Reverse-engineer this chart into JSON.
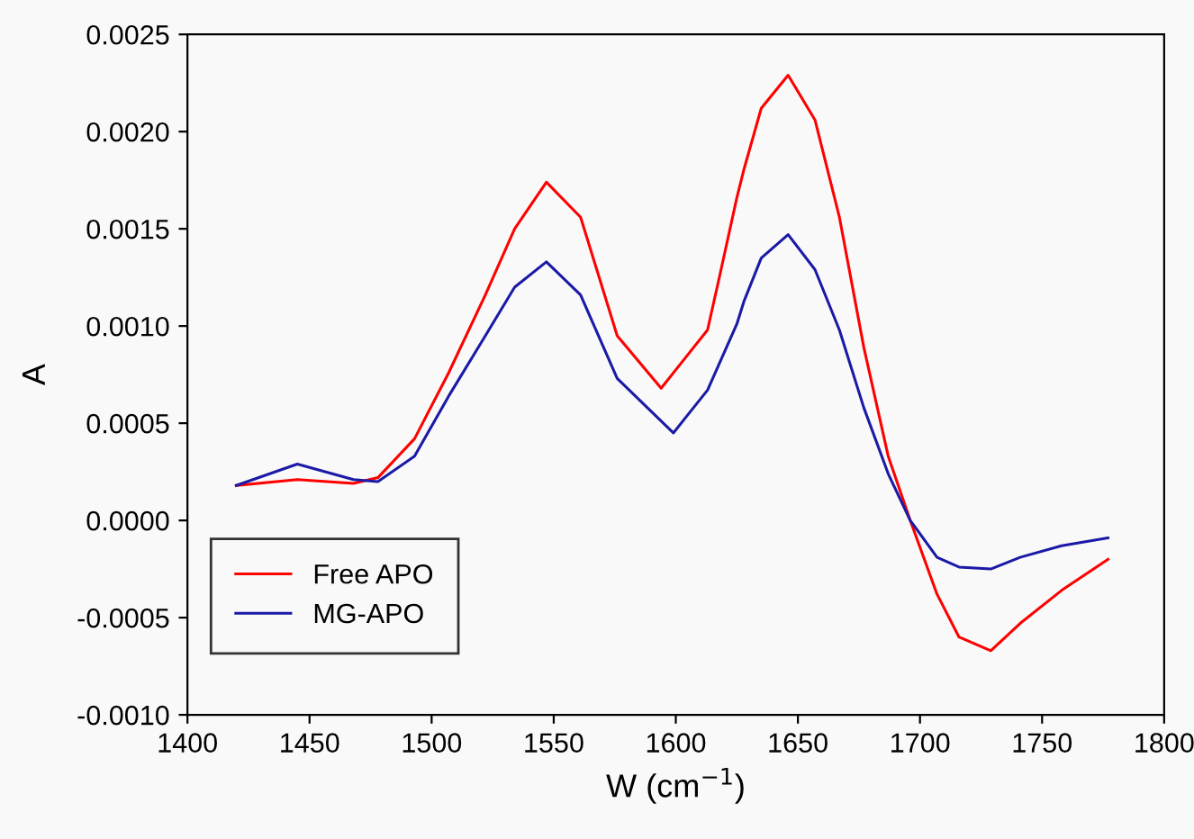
{
  "chart_data": {
    "type": "line",
    "xlabel": "W (cm$^{−1}$)",
    "ylabel": "A",
    "xlim": [
      1400,
      1800
    ],
    "xticks": [
      1400,
      1450,
      1500,
      1550,
      1600,
      1650,
      1700,
      1750,
      1800
    ],
    "ylim": [
      -0.001,
      0.0025
    ],
    "yticks": [
      {
        "value": -0.001,
        "label": "-0.0010"
      },
      {
        "value": -0.0005,
        "label": "-0.0005"
      },
      {
        "value": 0,
        "label": "0.0000"
      },
      {
        "value": 0.0005,
        "label": "0.0005"
      },
      {
        "value": 0.001,
        "label": "0.0010"
      },
      {
        "value": 0.0015,
        "label": "0.0015"
      },
      {
        "value": 0.002,
        "label": "0.0020"
      },
      {
        "value": 0.0025,
        "label": "0.0025"
      }
    ],
    "grid": false,
    "legend": "bottom left",
    "marker": "none",
    "line_style": "solid",
    "series": [
      {
        "name": "Free APO",
        "color": "#ff0000",
        "x": [
          1420,
          1445,
          1468,
          1478,
          1493,
          1507,
          1522,
          1534,
          1547,
          1561,
          1576,
          1594,
          1613,
          1618,
          1625,
          1628,
          1635,
          1646,
          1657,
          1667,
          1677,
          1687,
          1696,
          1707,
          1716,
          1729,
          1741,
          1758,
          1777
        ],
        "values": [
          0.00018,
          0.00021,
          0.00019,
          0.00022,
          0.00042,
          0.00076,
          0.00116,
          0.0015,
          0.00174,
          0.00156,
          0.00095,
          0.00068,
          0.00098,
          0.00126,
          0.00166,
          0.00181,
          0.00212,
          0.00229,
          0.00206,
          0.00156,
          0.00089,
          0.00033,
          0.0,
          -0.00038,
          -0.0006,
          -0.00067,
          -0.00053,
          -0.00036,
          -0.0002
        ]
      },
      {
        "name": "MG-APO",
        "color": "#1a1aa6",
        "x": [
          1420,
          1445,
          1468,
          1478,
          1493,
          1507,
          1522,
          1534,
          1547,
          1561,
          1576,
          1599,
          1613,
          1625,
          1628,
          1635,
          1646,
          1657,
          1667,
          1677,
          1687,
          1696,
          1707,
          1716,
          1729,
          1741,
          1758,
          1777
        ],
        "values": [
          0.00018,
          0.00029,
          0.00021,
          0.0002,
          0.00033,
          0.00064,
          0.00095,
          0.0012,
          0.00133,
          0.00116,
          0.00073,
          0.00045,
          0.00067,
          0.00101,
          0.00113,
          0.00135,
          0.00147,
          0.00129,
          0.00098,
          0.00058,
          0.00024,
          0.0,
          -0.00019,
          -0.00024,
          -0.00025,
          -0.00019,
          -0.00013,
          -9e-05
        ]
      }
    ]
  }
}
